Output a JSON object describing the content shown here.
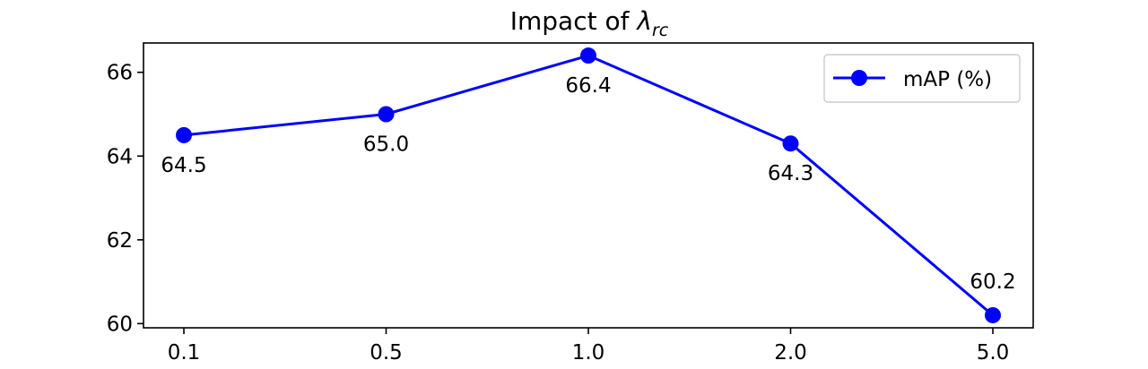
{
  "chart_data": {
    "type": "line",
    "title_main": "Impact of ",
    "title_symbol": "λ",
    "title_subscript": "rc",
    "xlabel": "",
    "ylabel": "",
    "categories": [
      "0.1",
      "0.5",
      "1.0",
      "2.0",
      "5.0"
    ],
    "series": [
      {
        "name": "mAP (%)",
        "values": [
          64.5,
          65.0,
          66.4,
          64.3,
          60.2
        ],
        "data_labels": [
          "64.5",
          "65.0",
          "66.4",
          "64.3",
          "60.2"
        ],
        "color": "#0000ff",
        "marker": "circle"
      }
    ],
    "ylim": [
      59.9,
      66.7
    ],
    "yticks": [
      60,
      62,
      64,
      66
    ],
    "ytick_labels": [
      "60",
      "62",
      "64",
      "66"
    ],
    "grid": false,
    "legend_position": "upper right"
  }
}
